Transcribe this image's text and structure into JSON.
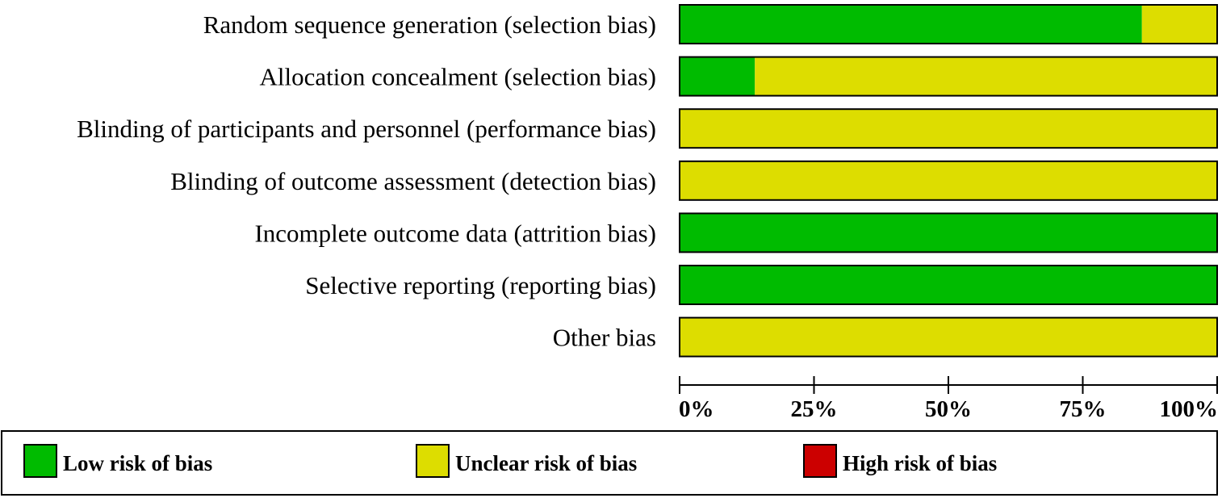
{
  "chart_data": {
    "type": "bar",
    "stacked": true,
    "orientation": "horizontal",
    "title": "",
    "xlabel": "",
    "ylabel": "",
    "xlim": [
      0,
      100
    ],
    "x_ticks": [
      "0%",
      "25%",
      "50%",
      "75%",
      "100%"
    ],
    "x_tick_values": [
      0,
      25,
      50,
      75,
      100
    ],
    "categories": [
      "Random sequence generation (selection bias)",
      "Allocation concealment (selection bias)",
      "Blinding of participants and personnel (performance bias)",
      "Blinding of outcome assessment (detection bias)",
      "Incomplete outcome data (attrition bias)",
      "Selective reporting (reporting bias)",
      "Other bias"
    ],
    "series": [
      {
        "name": "Low risk of bias",
        "color": "#00bb00",
        "values": [
          86,
          14,
          0,
          0,
          100,
          100,
          0
        ]
      },
      {
        "name": "Unclear risk of bias",
        "color": "#dddd00",
        "values": [
          14,
          86,
          100,
          100,
          0,
          0,
          100
        ]
      },
      {
        "name": "High risk of bias",
        "color": "#cc0000",
        "values": [
          0,
          0,
          0,
          0,
          0,
          0,
          0
        ]
      }
    ],
    "legend_position": "bottom",
    "grid": false
  }
}
